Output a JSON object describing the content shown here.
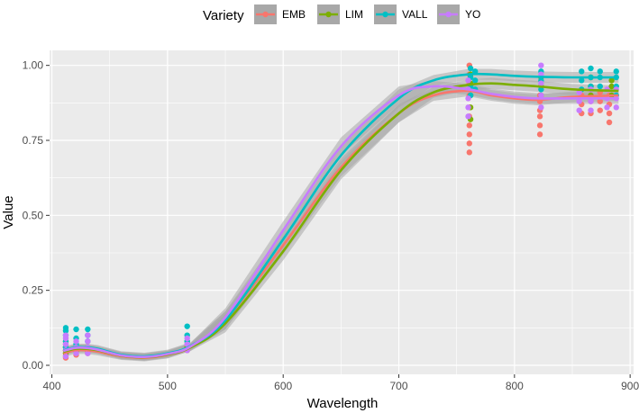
{
  "chart_data": {
    "type": "scatter",
    "xlabel": "Wavelength",
    "ylabel": "Value",
    "xlim": [
      398,
      903
    ],
    "ylim": [
      -0.03,
      1.05
    ],
    "x_ticks": [
      400,
      500,
      600,
      700,
      800,
      900
    ],
    "x_tick_labels": [
      "400",
      "500",
      "600",
      "700",
      "800",
      "900"
    ],
    "y_ticks": [
      0.0,
      0.25,
      0.5,
      0.75,
      1.0
    ],
    "y_tick_labels": [
      "0.00",
      "0.25",
      "0.50",
      "0.75",
      "1.00"
    ],
    "grid": true,
    "background": "#ebebeb",
    "legend": {
      "title": "Variety",
      "position": "top"
    },
    "band_color": "#a8a8a8",
    "series": [
      {
        "name": "EMB",
        "color": "#f8766d",
        "curve_x": [
          410,
          420,
          430,
          440,
          460,
          480,
          500,
          520,
          550,
          600,
          650,
          700,
          730,
          760,
          780,
          800,
          820,
          850,
          890
        ],
        "curve_y": [
          0.04,
          0.05,
          0.05,
          0.045,
          0.03,
          0.025,
          0.035,
          0.06,
          0.15,
          0.4,
          0.66,
          0.84,
          0.9,
          0.915,
          0.9,
          0.89,
          0.885,
          0.895,
          0.9
        ],
        "points": [
          {
            "x": 412,
            "y": [
              0.025,
              0.032,
              0.04,
              0.05,
              0.06,
              0.07
            ]
          },
          {
            "x": 421,
            "y": [
              0.035,
              0.045,
              0.055
            ]
          },
          {
            "x": 431,
            "y": [
              0.04,
              0.05,
              0.06
            ]
          },
          {
            "x": 517,
            "y": [
              0.05,
              0.06,
              0.07
            ]
          },
          {
            "x": 761,
            "y": [
              0.71,
              0.74,
              0.77,
              0.8,
              0.83,
              0.86,
              0.9,
              0.94,
              0.97,
              1.0
            ]
          },
          {
            "x": 822,
            "y": [
              0.77,
              0.8,
              0.83,
              0.85,
              0.88,
              0.9
            ]
          },
          {
            "x": 858,
            "y": [
              0.84,
              0.87,
              0.9
            ]
          },
          {
            "x": 866,
            "y": [
              0.84,
              0.88,
              0.9
            ]
          },
          {
            "x": 874,
            "y": [
              0.85,
              0.88,
              0.91
            ]
          },
          {
            "x": 882,
            "y": [
              0.81,
              0.84,
              0.87,
              0.9
            ]
          }
        ]
      },
      {
        "name": "LIM",
        "color": "#7cae00",
        "curve_x": [
          410,
          420,
          430,
          440,
          460,
          480,
          500,
          520,
          550,
          600,
          650,
          700,
          730,
          760,
          780,
          800,
          820,
          850,
          890
        ],
        "curve_y": [
          0.045,
          0.055,
          0.055,
          0.05,
          0.032,
          0.027,
          0.036,
          0.06,
          0.14,
          0.38,
          0.65,
          0.84,
          0.91,
          0.935,
          0.94,
          0.935,
          0.93,
          0.92,
          0.915
        ],
        "points": [
          {
            "x": 412,
            "y": [
              0.04,
              0.05,
              0.06,
              0.08
            ]
          },
          {
            "x": 421,
            "y": [
              0.05,
              0.06
            ]
          },
          {
            "x": 431,
            "y": [
              0.05,
              0.06
            ]
          },
          {
            "x": 517,
            "y": [
              0.06,
              0.08
            ]
          },
          {
            "x": 762,
            "y": [
              0.82,
              0.86,
              0.9,
              0.94,
              0.97
            ]
          },
          {
            "x": 823,
            "y": [
              0.9,
              0.93,
              0.96
            ]
          },
          {
            "x": 866,
            "y": [
              0.9,
              0.93,
              0.96
            ]
          },
          {
            "x": 884,
            "y": [
              0.9,
              0.93,
              0.95
            ]
          }
        ]
      },
      {
        "name": "VALL",
        "color": "#00bfc4",
        "curve_x": [
          410,
          420,
          430,
          440,
          460,
          480,
          500,
          520,
          550,
          600,
          650,
          700,
          730,
          760,
          780,
          800,
          820,
          850,
          890
        ],
        "curve_y": [
          0.05,
          0.06,
          0.06,
          0.055,
          0.035,
          0.03,
          0.04,
          0.065,
          0.15,
          0.42,
          0.7,
          0.89,
          0.95,
          0.97,
          0.97,
          0.965,
          0.962,
          0.96,
          0.96
        ],
        "points": [
          {
            "x": 412,
            "y": [
              0.06,
              0.08,
              0.1,
              0.115,
              0.125
            ]
          },
          {
            "x": 421,
            "y": [
              0.07,
              0.09,
              0.12
            ]
          },
          {
            "x": 431,
            "y": [
              0.08,
              0.1,
              0.12
            ]
          },
          {
            "x": 517,
            "y": [
              0.08,
              0.1,
              0.13
            ]
          },
          {
            "x": 762,
            "y": [
              0.9,
              0.93,
              0.96,
              0.99
            ]
          },
          {
            "x": 766,
            "y": [
              0.92,
              0.95,
              0.98
            ]
          },
          {
            "x": 823,
            "y": [
              0.92,
              0.95,
              0.98
            ]
          },
          {
            "x": 858,
            "y": [
              0.92,
              0.95,
              0.98
            ]
          },
          {
            "x": 866,
            "y": [
              0.93,
              0.96,
              0.99
            ]
          },
          {
            "x": 874,
            "y": [
              0.93,
              0.96,
              0.98
            ]
          },
          {
            "x": 888,
            "y": [
              0.9,
              0.93,
              0.96,
              0.98
            ]
          }
        ]
      },
      {
        "name": "YO",
        "color": "#c77cff",
        "curve_x": [
          410,
          420,
          430,
          440,
          460,
          480,
          500,
          520,
          550,
          600,
          650,
          700,
          730,
          760,
          780,
          800,
          820,
          850,
          890
        ],
        "curve_y": [
          0.048,
          0.058,
          0.058,
          0.052,
          0.033,
          0.028,
          0.038,
          0.063,
          0.16,
          0.45,
          0.73,
          0.9,
          0.93,
          0.92,
          0.905,
          0.895,
          0.89,
          0.89,
          0.89
        ],
        "points": [
          {
            "x": 412,
            "y": [
              0.03,
              0.05,
              0.07,
              0.09,
              0.1
            ]
          },
          {
            "x": 421,
            "y": [
              0.04,
              0.06,
              0.08
            ]
          },
          {
            "x": 431,
            "y": [
              0.04,
              0.06,
              0.08,
              0.1
            ]
          },
          {
            "x": 517,
            "y": [
              0.05,
              0.07,
              0.09
            ]
          },
          {
            "x": 760,
            "y": [
              0.83,
              0.86,
              0.89,
              0.92,
              0.95
            ]
          },
          {
            "x": 823,
            "y": [
              0.86,
              0.9,
              0.94,
              0.97,
              1.0
            ]
          },
          {
            "x": 856,
            "y": [
              0.85,
              0.88,
              0.91
            ]
          },
          {
            "x": 866,
            "y": [
              0.85,
              0.88,
              0.92
            ]
          },
          {
            "x": 880,
            "y": [
              0.86,
              0.89,
              0.92
            ]
          },
          {
            "x": 888,
            "y": [
              0.86,
              0.89,
              0.92
            ]
          }
        ]
      }
    ]
  }
}
